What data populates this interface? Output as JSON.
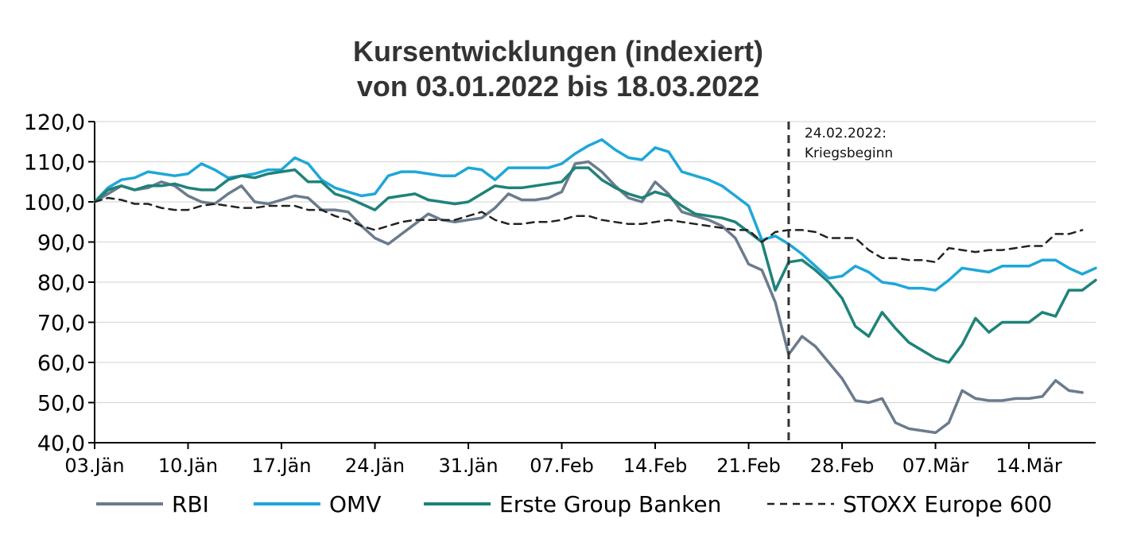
{
  "chart_data": {
    "type": "line",
    "title": "Kursentwicklungen (indexiert)",
    "subtitle": "von 03.01.2022 bis 18.03.2022",
    "xlabel": "",
    "ylabel": "",
    "ylim": [
      40,
      120
    ],
    "y_ticks": [
      "120,0",
      "110,0",
      "100,0",
      "90,0",
      "80,0",
      "70,0",
      "60,0",
      "50,0",
      "40,0"
    ],
    "x_tick_labels": [
      "03.Jän",
      "10.Jän",
      "17.Jän",
      "24.Jän",
      "31.Jän",
      "07.Feb",
      "14.Feb",
      "21.Feb",
      "28.Feb",
      "07.Mär",
      "14.Mär"
    ],
    "x_tick_days": [
      0,
      7,
      14,
      21,
      28,
      35,
      42,
      49,
      56,
      63,
      70
    ],
    "x_range_days": [
      0,
      75
    ],
    "grid": "horizontal",
    "legend_position": "bottom",
    "annotation": {
      "day": 52,
      "line1": "24.02.2022:",
      "line2": "Kriegsbeginn"
    },
    "series": [
      {
        "name": "RBI",
        "color": "#6b7b8d",
        "style": "solid",
        "points": [
          [
            0,
            100
          ],
          [
            1,
            102
          ],
          [
            2,
            104
          ],
          [
            3,
            103
          ],
          [
            4,
            103.5
          ],
          [
            5,
            105
          ],
          [
            6,
            104
          ],
          [
            7,
            101.5
          ],
          [
            8,
            100
          ],
          [
            9,
            99.5
          ],
          [
            10,
            102
          ],
          [
            11,
            104
          ],
          [
            12,
            100
          ],
          [
            13,
            99.5
          ],
          [
            14,
            100.5
          ],
          [
            15,
            101.5
          ],
          [
            16,
            101
          ],
          [
            17,
            98
          ],
          [
            18,
            98
          ],
          [
            19,
            97.5
          ],
          [
            20,
            94
          ],
          [
            21,
            91
          ],
          [
            22,
            89.5
          ],
          [
            23,
            92
          ],
          [
            24,
            94.5
          ],
          [
            25,
            97
          ],
          [
            26,
            95.5
          ],
          [
            27,
            95
          ],
          [
            28,
            95.5
          ],
          [
            29,
            96
          ],
          [
            30,
            98.5
          ],
          [
            31,
            102
          ],
          [
            32,
            100.5
          ],
          [
            33,
            100.5
          ],
          [
            34,
            101
          ],
          [
            35,
            102.5
          ],
          [
            36,
            109.5
          ],
          [
            37,
            110
          ],
          [
            38,
            107.5
          ],
          [
            39,
            104
          ],
          [
            40,
            101
          ],
          [
            41,
            100
          ],
          [
            42,
            105
          ],
          [
            43,
            102
          ],
          [
            44,
            97.5
          ],
          [
            45,
            96.5
          ],
          [
            46,
            95.5
          ],
          [
            47,
            94
          ],
          [
            48,
            91
          ],
          [
            49,
            84.5
          ],
          [
            50,
            83
          ],
          [
            51,
            75
          ],
          [
            52,
            62
          ],
          [
            53,
            66.5
          ],
          [
            54,
            64
          ],
          [
            55,
            60
          ],
          [
            56,
            56
          ],
          [
            57,
            50.5
          ],
          [
            58,
            50
          ],
          [
            59,
            51
          ],
          [
            60,
            45
          ],
          [
            61,
            43.5
          ],
          [
            62,
            43
          ],
          [
            63,
            42.5
          ],
          [
            64,
            45
          ],
          [
            65,
            53
          ],
          [
            66,
            51
          ],
          [
            67,
            50.5
          ],
          [
            68,
            50.5
          ],
          [
            69,
            51
          ],
          [
            70,
            51
          ],
          [
            71,
            51.5
          ],
          [
            72,
            55.5
          ],
          [
            73,
            53
          ],
          [
            74,
            52.5
          ]
        ]
      },
      {
        "name": "OMV",
        "color": "#1ea7d8",
        "style": "solid",
        "points": [
          [
            0,
            100
          ],
          [
            1,
            103.5
          ],
          [
            2,
            105.5
          ],
          [
            3,
            106
          ],
          [
            4,
            107.5
          ],
          [
            5,
            107
          ],
          [
            6,
            106.5
          ],
          [
            7,
            107
          ],
          [
            8,
            109.5
          ],
          [
            9,
            108
          ],
          [
            10,
            106
          ],
          [
            11,
            106.5
          ],
          [
            12,
            107
          ],
          [
            13,
            108
          ],
          [
            14,
            108
          ],
          [
            15,
            111
          ],
          [
            16,
            109.5
          ],
          [
            17,
            105.5
          ],
          [
            18,
            103.5
          ],
          [
            19,
            102.5
          ],
          [
            20,
            101.5
          ],
          [
            21,
            102
          ],
          [
            22,
            106.5
          ],
          [
            23,
            107.5
          ],
          [
            24,
            107.5
          ],
          [
            25,
            107
          ],
          [
            26,
            106.5
          ],
          [
            27,
            106.5
          ],
          [
            28,
            108.5
          ],
          [
            29,
            108
          ],
          [
            30,
            105.5
          ],
          [
            31,
            108.5
          ],
          [
            32,
            108.5
          ],
          [
            33,
            108.5
          ],
          [
            34,
            108.5
          ],
          [
            35,
            109.5
          ],
          [
            36,
            112
          ],
          [
            37,
            114
          ],
          [
            38,
            115.5
          ],
          [
            39,
            113
          ],
          [
            40,
            111
          ],
          [
            41,
            110.5
          ],
          [
            42,
            113.5
          ],
          [
            43,
            112.5
          ],
          [
            44,
            107.5
          ],
          [
            45,
            106.5
          ],
          [
            46,
            105.5
          ],
          [
            47,
            104
          ],
          [
            48,
            101.5
          ],
          [
            49,
            99
          ],
          [
            50,
            90.5
          ],
          [
            51,
            91.5
          ],
          [
            52,
            89.5
          ],
          [
            53,
            87
          ],
          [
            54,
            84
          ],
          [
            55,
            81
          ],
          [
            56,
            81.5
          ],
          [
            57,
            84
          ],
          [
            58,
            82.5
          ],
          [
            59,
            80
          ],
          [
            60,
            79.5
          ],
          [
            61,
            78.5
          ],
          [
            62,
            78.5
          ],
          [
            63,
            78
          ],
          [
            64,
            80.5
          ],
          [
            65,
            83.5
          ],
          [
            66,
            83
          ],
          [
            67,
            82.5
          ],
          [
            68,
            84
          ],
          [
            69,
            84
          ],
          [
            70,
            84
          ],
          [
            71,
            85.5
          ],
          [
            72,
            85.5
          ],
          [
            73,
            83.5
          ],
          [
            74,
            82
          ],
          [
            75,
            83.5
          ]
        ]
      },
      {
        "name": "Erste Group Banken",
        "color": "#1f8279",
        "style": "solid",
        "points": [
          [
            0,
            100
          ],
          [
            1,
            103
          ],
          [
            2,
            104
          ],
          [
            3,
            103
          ],
          [
            4,
            104
          ],
          [
            5,
            104
          ],
          [
            6,
            104.5
          ],
          [
            7,
            103.5
          ],
          [
            8,
            103
          ],
          [
            9,
            103
          ],
          [
            10,
            105.5
          ],
          [
            11,
            106.5
          ],
          [
            12,
            106
          ],
          [
            13,
            107
          ],
          [
            14,
            107.5
          ],
          [
            15,
            108
          ],
          [
            16,
            105
          ],
          [
            17,
            105
          ],
          [
            18,
            102
          ],
          [
            19,
            101
          ],
          [
            20,
            99.5
          ],
          [
            21,
            98
          ],
          [
            22,
            101
          ],
          [
            23,
            101.5
          ],
          [
            24,
            102
          ],
          [
            25,
            100.5
          ],
          [
            26,
            100
          ],
          [
            27,
            99.5
          ],
          [
            28,
            100
          ],
          [
            29,
            102
          ],
          [
            30,
            104
          ],
          [
            31,
            103.5
          ],
          [
            32,
            103.5
          ],
          [
            33,
            104
          ],
          [
            34,
            104.5
          ],
          [
            35,
            105
          ],
          [
            36,
            108.5
          ],
          [
            37,
            108.5
          ],
          [
            38,
            105.5
          ],
          [
            39,
            103.5
          ],
          [
            40,
            102
          ],
          [
            41,
            101
          ],
          [
            42,
            102.5
          ],
          [
            43,
            101.5
          ],
          [
            44,
            99
          ],
          [
            45,
            97
          ],
          [
            46,
            96.5
          ],
          [
            47,
            96
          ],
          [
            48,
            95
          ],
          [
            49,
            92.5
          ],
          [
            50,
            90
          ],
          [
            51,
            78
          ],
          [
            52,
            85
          ],
          [
            53,
            85.5
          ],
          [
            54,
            83
          ],
          [
            55,
            80
          ],
          [
            56,
            76
          ],
          [
            57,
            69
          ],
          [
            58,
            66.5
          ],
          [
            59,
            72.5
          ],
          [
            60,
            68.5
          ],
          [
            61,
            65
          ],
          [
            62,
            63
          ],
          [
            63,
            61
          ],
          [
            64,
            60
          ],
          [
            65,
            64.5
          ],
          [
            66,
            71
          ],
          [
            67,
            67.5
          ],
          [
            68,
            70
          ],
          [
            69,
            70
          ],
          [
            70,
            70
          ],
          [
            71,
            72.5
          ],
          [
            72,
            71.5
          ],
          [
            73,
            78
          ],
          [
            74,
            78
          ],
          [
            75,
            80.5
          ]
        ]
      },
      {
        "name": "STOXX Europe 600",
        "color": "#222222",
        "style": "dashed",
        "points": [
          [
            0,
            100
          ],
          [
            1,
            101
          ],
          [
            2,
            100.5
          ],
          [
            3,
            99.5
          ],
          [
            4,
            99.5
          ],
          [
            5,
            98.5
          ],
          [
            6,
            98
          ],
          [
            7,
            98
          ],
          [
            8,
            99
          ],
          [
            9,
            99.5
          ],
          [
            10,
            99
          ],
          [
            11,
            98.5
          ],
          [
            12,
            98.5
          ],
          [
            13,
            99
          ],
          [
            14,
            99
          ],
          [
            15,
            99
          ],
          [
            16,
            98
          ],
          [
            17,
            98
          ],
          [
            18,
            96.5
          ],
          [
            19,
            95.5
          ],
          [
            20,
            94
          ],
          [
            21,
            93
          ],
          [
            22,
            94
          ],
          [
            23,
            95
          ],
          [
            24,
            95.5
          ],
          [
            25,
            95.5
          ],
          [
            26,
            95.5
          ],
          [
            27,
            95.5
          ],
          [
            28,
            96.5
          ],
          [
            29,
            97.5
          ],
          [
            30,
            95.5
          ],
          [
            31,
            94.5
          ],
          [
            32,
            94.5
          ],
          [
            33,
            95
          ],
          [
            34,
            95
          ],
          [
            35,
            95.5
          ],
          [
            36,
            96.5
          ],
          [
            37,
            96.5
          ],
          [
            38,
            95.5
          ],
          [
            39,
            95
          ],
          [
            40,
            94.5
          ],
          [
            41,
            94.5
          ],
          [
            42,
            95
          ],
          [
            43,
            95.5
          ],
          [
            44,
            95
          ],
          [
            45,
            94.5
          ],
          [
            46,
            94
          ],
          [
            47,
            93.5
          ],
          [
            48,
            93
          ],
          [
            49,
            93
          ],
          [
            50,
            90
          ],
          [
            51,
            92.5
          ],
          [
            52,
            93
          ],
          [
            53,
            93
          ],
          [
            54,
            92.5
          ],
          [
            55,
            91
          ],
          [
            56,
            91
          ],
          [
            57,
            91
          ],
          [
            58,
            88
          ],
          [
            59,
            86
          ],
          [
            60,
            86
          ],
          [
            61,
            85.5
          ],
          [
            62,
            85.5
          ],
          [
            63,
            85
          ],
          [
            64,
            88.5
          ],
          [
            65,
            88
          ],
          [
            66,
            87.5
          ],
          [
            67,
            88
          ],
          [
            68,
            88
          ],
          [
            69,
            88.5
          ],
          [
            70,
            89
          ],
          [
            71,
            89
          ],
          [
            72,
            92
          ],
          [
            73,
            92
          ],
          [
            74,
            93
          ]
        ]
      }
    ]
  }
}
